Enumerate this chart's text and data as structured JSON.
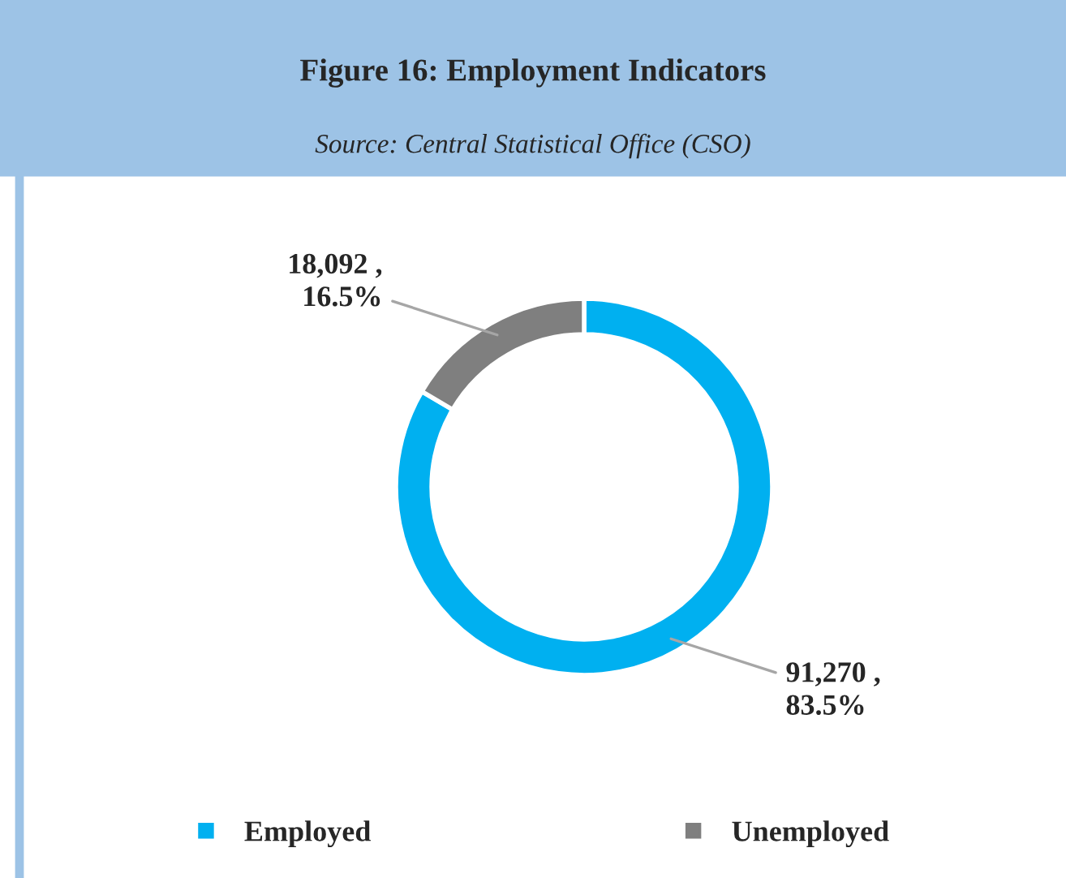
{
  "chart_data": {
    "type": "donut",
    "title": "Figure 16: Employment Indicators",
    "subtitle": "Source: Central Statistical Office (CSO)",
    "categories": [
      "Employed",
      "Unemployed"
    ],
    "values": [
      91270,
      18092
    ],
    "colors": [
      "#00b0f0",
      "#7f7f7f"
    ],
    "value_labels": [
      "91,270 ,\n83.5%",
      "18,092 ,\n16.5%"
    ],
    "legend": "bottom"
  }
}
